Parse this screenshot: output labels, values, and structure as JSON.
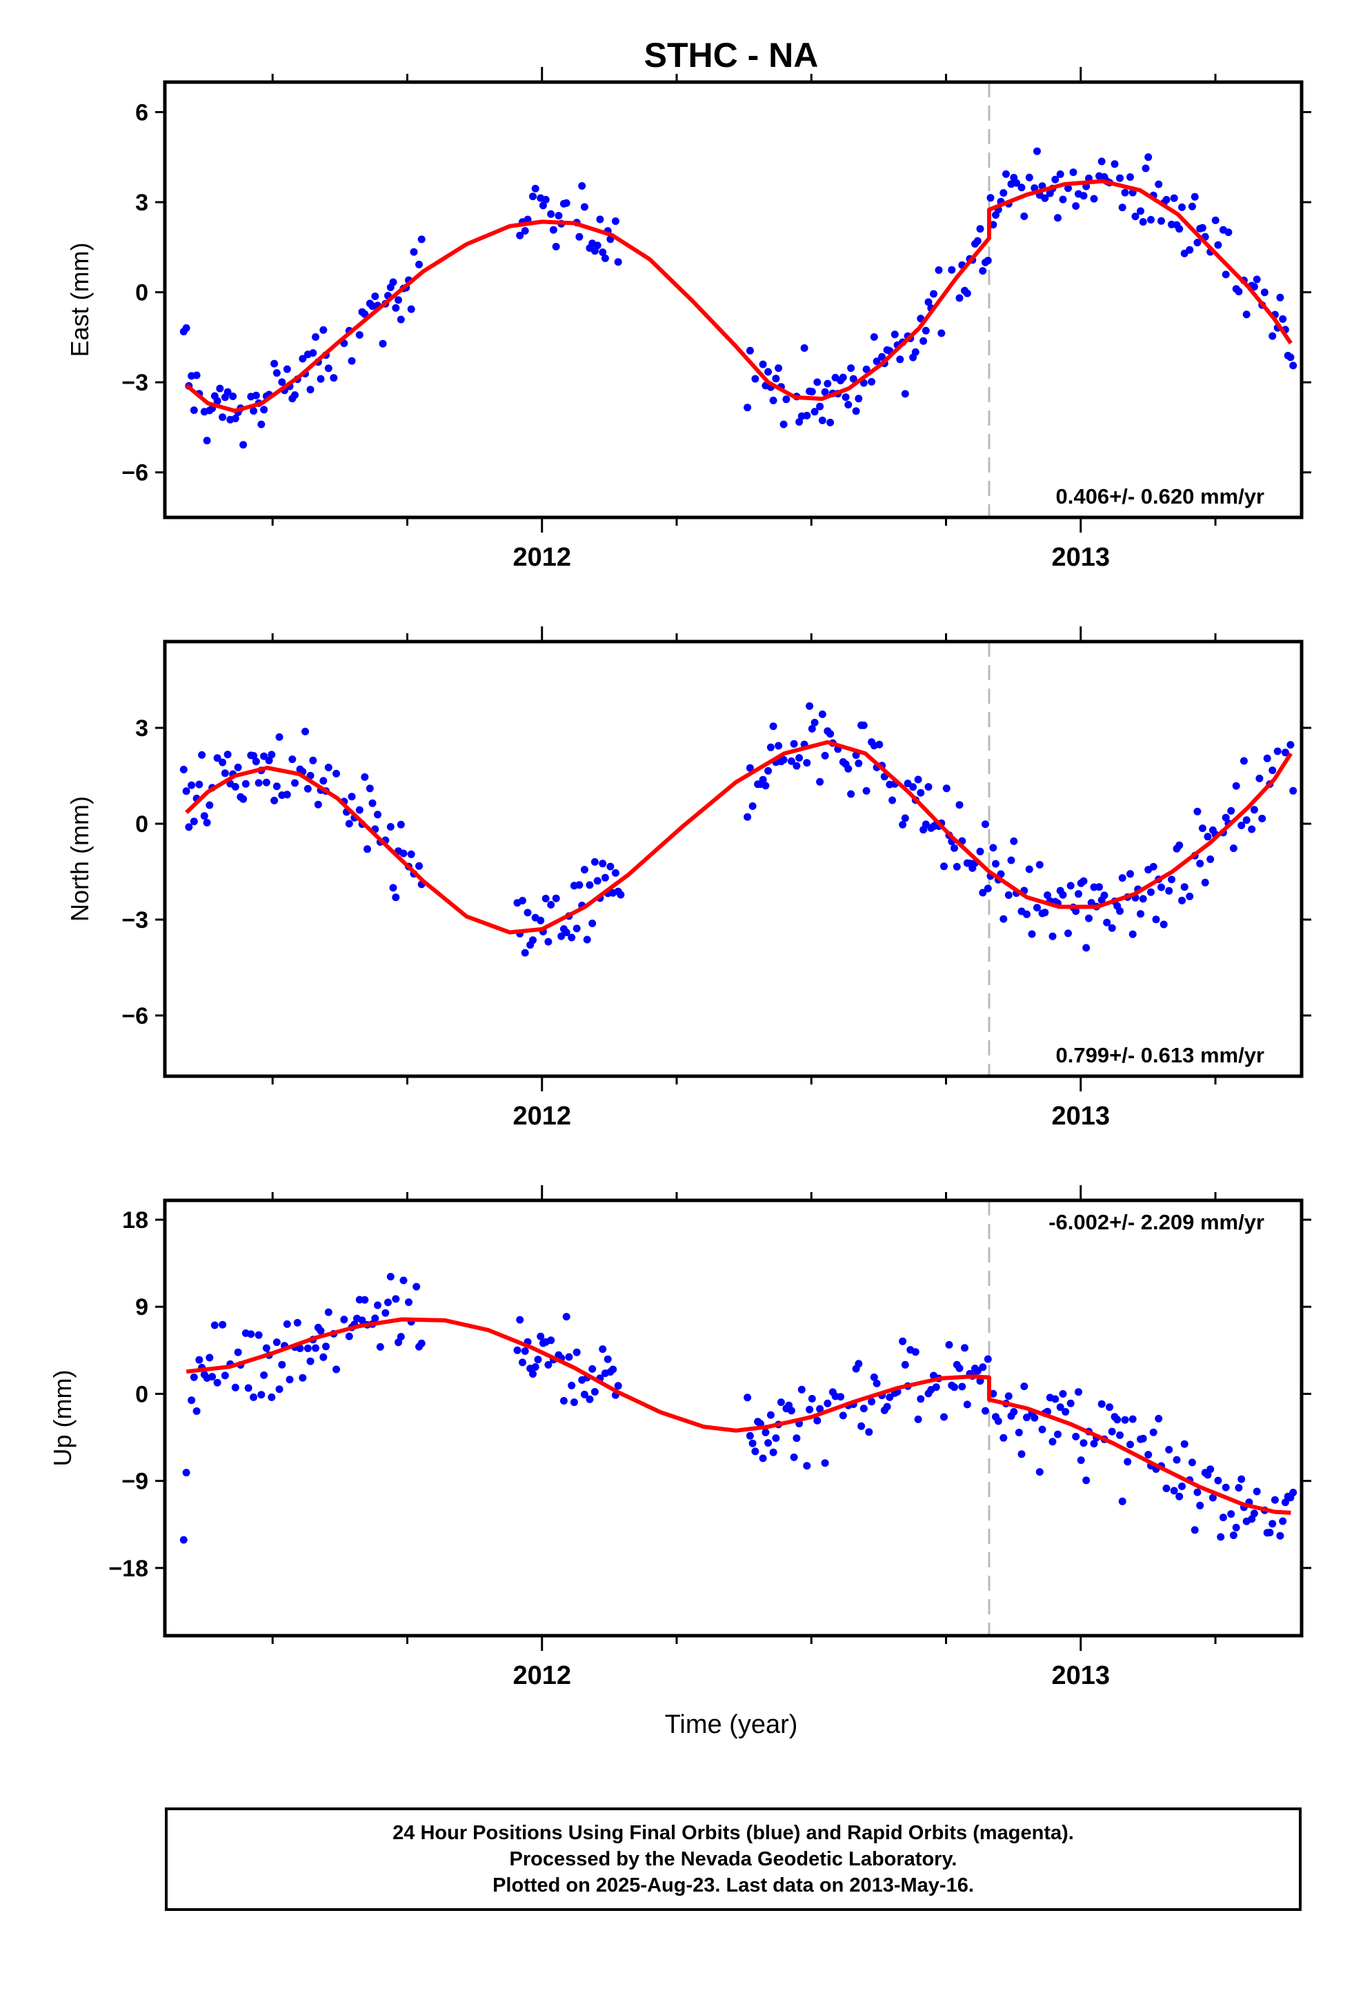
{
  "title": "STHC - NA",
  "colors": {
    "points": "#0000ff",
    "fit": "#ff0000",
    "break_line": "#bbbbbb",
    "frame": "#000000"
  },
  "footer": {
    "line1": "24 Hour Positions Using Final Orbits (blue) and Rapid Orbits (magenta).",
    "line2": "Processed by the Nevada Geodetic Laboratory.",
    "line3": "Plotted on 2025-Aug-23. Last data on 2013-May-16."
  },
  "chart_data": [
    {
      "type": "scatter",
      "ylabel": "East (mm)",
      "xlim": [
        2011.3,
        2013.41
      ],
      "ylim": [
        -7.5,
        7
      ],
      "yticks": [
        -6,
        -3,
        0,
        3,
        6
      ],
      "xticks": [
        2012,
        2013
      ],
      "break_x": 2012.83,
      "rate_label": "0.406+/- 0.620 mm/yr",
      "points_desc": "daily positions, blue points",
      "fit": [
        [
          2011.34,
          -3.1
        ],
        [
          2011.38,
          -3.7
        ],
        [
          2011.43,
          -3.95
        ],
        [
          2011.48,
          -3.7
        ],
        [
          2011.55,
          -2.8
        ],
        [
          2011.62,
          -1.7
        ],
        [
          2011.7,
          -0.5
        ],
        [
          2011.78,
          0.7
        ],
        [
          2011.86,
          1.6
        ],
        [
          2011.94,
          2.2
        ],
        [
          2012.0,
          2.35
        ],
        [
          2012.06,
          2.3
        ],
        [
          2012.13,
          1.9
        ],
        [
          2012.2,
          1.1
        ],
        [
          2012.28,
          -0.3
        ],
        [
          2012.36,
          -1.8
        ],
        [
          2012.42,
          -3.0
        ],
        [
          2012.47,
          -3.5
        ],
        [
          2012.52,
          -3.55
        ],
        [
          2012.57,
          -3.2
        ],
        [
          2012.63,
          -2.4
        ],
        [
          2012.7,
          -1.2
        ],
        [
          2012.77,
          0.5
        ],
        [
          2012.83,
          1.8
        ],
        [
          2012.83,
          2.75
        ],
        [
          2012.9,
          3.25
        ],
        [
          2012.97,
          3.6
        ],
        [
          2013.04,
          3.7
        ],
        [
          2013.11,
          3.4
        ],
        [
          2013.18,
          2.6
        ],
        [
          2013.25,
          1.3
        ],
        [
          2013.31,
          0.2
        ],
        [
          2013.36,
          -0.9
        ],
        [
          2013.39,
          -1.7
        ]
      ]
    },
    {
      "type": "scatter",
      "ylabel": "North (mm)",
      "xlim": [
        2011.3,
        2013.41
      ],
      "ylim": [
        -7.9,
        5.7
      ],
      "yticks": [
        -6,
        -3,
        0,
        3
      ],
      "xticks": [
        2012,
        2013
      ],
      "break_x": 2012.83,
      "rate_label": "0.799+/- 0.613 mm/yr",
      "points_desc": "daily positions, blue points",
      "fit": [
        [
          2011.34,
          0.35
        ],
        [
          2011.38,
          1.0
        ],
        [
          2011.43,
          1.5
        ],
        [
          2011.49,
          1.75
        ],
        [
          2011.55,
          1.55
        ],
        [
          2011.62,
          0.8
        ],
        [
          2011.7,
          -0.5
        ],
        [
          2011.78,
          -1.8
        ],
        [
          2011.86,
          -2.9
        ],
        [
          2011.94,
          -3.4
        ],
        [
          2012.0,
          -3.3
        ],
        [
          2012.08,
          -2.6
        ],
        [
          2012.16,
          -1.6
        ],
        [
          2012.26,
          -0.1
        ],
        [
          2012.36,
          1.3
        ],
        [
          2012.45,
          2.2
        ],
        [
          2012.53,
          2.55
        ],
        [
          2012.6,
          2.2
        ],
        [
          2012.68,
          1.0
        ],
        [
          2012.76,
          -0.4
        ],
        [
          2012.83,
          -1.5
        ],
        [
          2012.9,
          -2.3
        ],
        [
          2012.96,
          -2.6
        ],
        [
          2013.03,
          -2.6
        ],
        [
          2013.1,
          -2.2
        ],
        [
          2013.17,
          -1.5
        ],
        [
          2013.24,
          -0.6
        ],
        [
          2013.31,
          0.5
        ],
        [
          2013.36,
          1.4
        ],
        [
          2013.39,
          2.2
        ]
      ]
    },
    {
      "type": "scatter",
      "ylabel": "Up (mm)",
      "xlim": [
        2011.3,
        2013.41
      ],
      "ylim": [
        -25,
        20
      ],
      "yticks": [
        -18,
        -9,
        0,
        9,
        18
      ],
      "ytick_labels": [
        "−18",
        "−9",
        "0",
        "9",
        "18"
      ],
      "xticks": [
        2012,
        2013
      ],
      "break_x": 2012.83,
      "rate_label": "-6.002+/- 2.209 mm/yr",
      "points_desc": "daily positions, blue points",
      "fit": [
        [
          2011.34,
          2.3
        ],
        [
          2011.42,
          2.8
        ],
        [
          2011.5,
          4.2
        ],
        [
          2011.58,
          5.8
        ],
        [
          2011.66,
          7.0
        ],
        [
          2011.74,
          7.7
        ],
        [
          2011.82,
          7.6
        ],
        [
          2011.9,
          6.6
        ],
        [
          2011.98,
          4.8
        ],
        [
          2012.06,
          2.7
        ],
        [
          2012.14,
          0.2
        ],
        [
          2012.22,
          -1.9
        ],
        [
          2012.3,
          -3.4
        ],
        [
          2012.36,
          -3.8
        ],
        [
          2012.42,
          -3.4
        ],
        [
          2012.5,
          -2.4
        ],
        [
          2012.58,
          -0.8
        ],
        [
          2012.66,
          0.6
        ],
        [
          2012.74,
          1.6
        ],
        [
          2012.8,
          1.8
        ],
        [
          2012.83,
          1.7
        ],
        [
          2012.83,
          -0.6
        ],
        [
          2012.9,
          -1.5
        ],
        [
          2012.98,
          -3.1
        ],
        [
          2013.06,
          -5.1
        ],
        [
          2013.14,
          -7.4
        ],
        [
          2013.22,
          -9.6
        ],
        [
          2013.3,
          -11.4
        ],
        [
          2013.36,
          -12.2
        ],
        [
          2013.39,
          -12.3
        ]
      ]
    }
  ],
  "xlabel": "Time (year)",
  "xtick_labels": [
    "2012",
    "2013"
  ]
}
